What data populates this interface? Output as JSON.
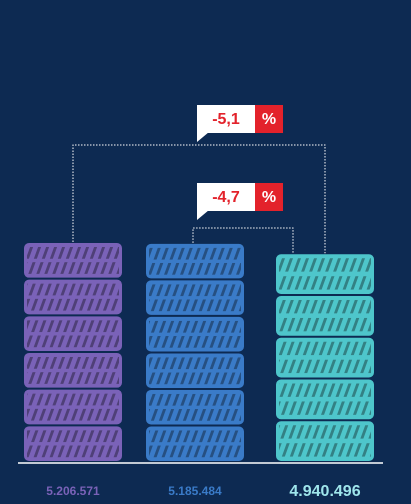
{
  "chart_data": {
    "type": "pictogram",
    "values": [
      5206571,
      5185484,
      4940496
    ],
    "value_labels": [
      "5.206.571",
      "5.185.484",
      "4.940.496"
    ],
    "colors": [
      "#7a62b8",
      "#3a7bc8",
      "#4ec6cb"
    ],
    "annotations": [
      {
        "text": "-5,1",
        "unit": "%"
      },
      {
        "text": "-4,7",
        "unit": "%"
      }
    ]
  }
}
